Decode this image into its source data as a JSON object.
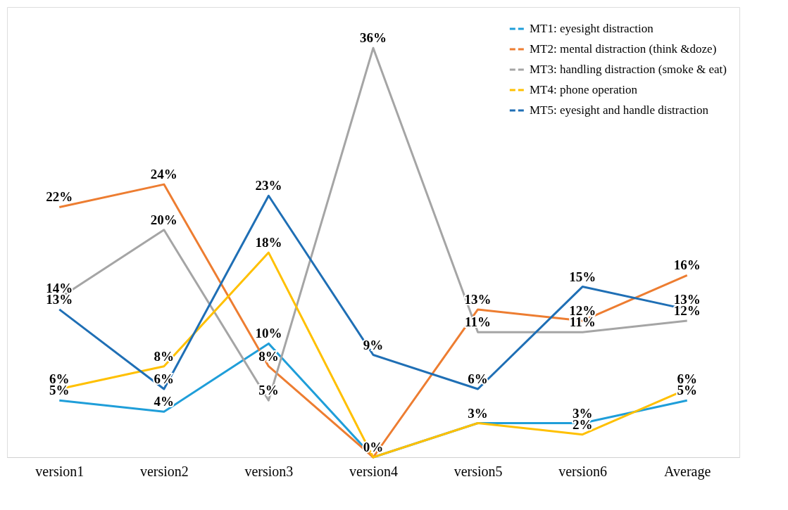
{
  "chart_data": {
    "type": "line",
    "categories": [
      "version1",
      "version2",
      "version3",
      "version4",
      "version5",
      "version6",
      "Average"
    ],
    "series": [
      {
        "name": "MT1: eyesight distraction",
        "color": "#1f9ed9",
        "values": [
          5,
          4,
          10,
          0,
          3,
          3,
          5
        ],
        "value_labels": [
          "5%",
          "4%",
          "10%",
          null,
          null,
          "3%",
          "5%"
        ]
      },
      {
        "name": "MT2: mental distraction (think &doze)",
        "color": "#ed7d31",
        "values": [
          22,
          24,
          8,
          0,
          13,
          12,
          16
        ],
        "value_labels": [
          "22%",
          "24%",
          "8%",
          null,
          "13%",
          "12%",
          "16%"
        ]
      },
      {
        "name": "MT3: handling distraction (smoke & eat)",
        "color": "#a5a5a5",
        "values": [
          14,
          20,
          5,
          36,
          11,
          11,
          12
        ],
        "value_labels": [
          "14%",
          "20%",
          "5%",
          "36%",
          "11%",
          "11%",
          "12%"
        ]
      },
      {
        "name": "MT4: phone operation",
        "color": "#ffc000",
        "values": [
          6,
          8,
          18,
          0,
          3,
          2,
          6
        ],
        "value_labels": [
          "6%",
          "8%",
          "18%",
          "0%",
          "3%",
          "2%",
          "6%"
        ]
      },
      {
        "name": "MT5: eyesight and handle distraction",
        "color": "#1f6fb5",
        "values": [
          13,
          6,
          23,
          9,
          6,
          15,
          13
        ],
        "value_labels": [
          "13%",
          "6%",
          "23%",
          "9%",
          "6%",
          "15%",
          "13%"
        ]
      }
    ],
    "legend": "top right",
    "grid": false,
    "marker": "none",
    "line_style": "solid"
  }
}
